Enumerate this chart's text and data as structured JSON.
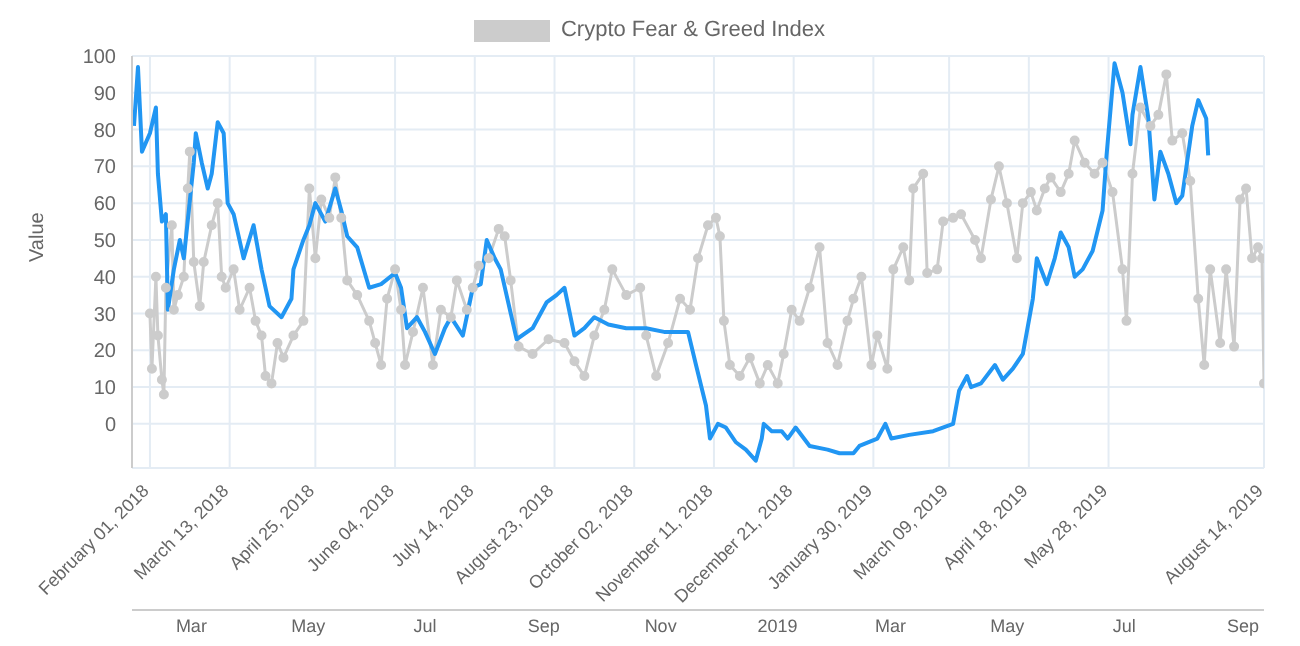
{
  "chart_data": {
    "type": "line",
    "ylabel": "Value",
    "ylim": [
      -12,
      100
    ],
    "yticks": [
      0,
      10,
      20,
      30,
      40,
      50,
      60,
      70,
      80,
      90,
      100
    ],
    "xlim": [
      "2018-01-23",
      "2019-08-14"
    ],
    "xticks": [
      {
        "value": "2018-02-01",
        "label": "February 01, 2018"
      },
      {
        "value": "2018-03-13",
        "label": "March 13, 2018"
      },
      {
        "value": "2018-04-25",
        "label": "April 25, 2018"
      },
      {
        "value": "2018-06-04",
        "label": "June 04, 2018"
      },
      {
        "value": "2018-07-14",
        "label": "July 14, 2018"
      },
      {
        "value": "2018-08-23",
        "label": "August 23, 2018"
      },
      {
        "value": "2018-10-02",
        "label": "October 02, 2018"
      },
      {
        "value": "2018-11-11",
        "label": "November 11, 2018"
      },
      {
        "value": "2018-12-21",
        "label": "December 21, 2018"
      },
      {
        "value": "2019-01-30",
        "label": "January 30, 2019"
      },
      {
        "value": "2019-03-09",
        "label": "March 09, 2019"
      },
      {
        "value": "2019-04-18",
        "label": "April 18, 2019"
      },
      {
        "value": "2019-05-28",
        "label": "May 28, 2019"
      },
      {
        "value": "2019-08-14",
        "label": "August 14, 2019"
      }
    ],
    "x2lim": [
      "2018-01-29",
      "2019-09-12"
    ],
    "x2ticks": [
      {
        "value": "2018-03-01",
        "label": "Mar"
      },
      {
        "value": "2018-05-01",
        "label": "May"
      },
      {
        "value": "2018-07-01",
        "label": "Jul"
      },
      {
        "value": "2018-09-01",
        "label": "Sep"
      },
      {
        "value": "2018-11-01",
        "label": "Nov"
      },
      {
        "value": "2019-01-01",
        "label": "2019"
      },
      {
        "value": "2019-03-01",
        "label": "Mar"
      },
      {
        "value": "2019-05-01",
        "label": "May"
      },
      {
        "value": "2019-07-01",
        "label": "Jul"
      },
      {
        "value": "2019-09-01",
        "label": "Sep"
      }
    ],
    "grid": true,
    "legend": "top",
    "series": [
      {
        "name": "Crypto Fear & Greed Index",
        "color": "#cccccc",
        "marker": "circle",
        "x": [
          "2018-02-01",
          "2018-02-02",
          "2018-02-04",
          "2018-02-05",
          "2018-02-07",
          "2018-02-08",
          "2018-02-09",
          "2018-02-12",
          "2018-02-13",
          "2018-02-15",
          "2018-02-18",
          "2018-02-20",
          "2018-02-21",
          "2018-02-23",
          "2018-02-26",
          "2018-02-28",
          "2018-03-04",
          "2018-03-07",
          "2018-03-09",
          "2018-03-11",
          "2018-03-15",
          "2018-03-18",
          "2018-03-23",
          "2018-03-26",
          "2018-03-29",
          "2018-03-31",
          "2018-04-03",
          "2018-04-06",
          "2018-04-09",
          "2018-04-14",
          "2018-04-19",
          "2018-04-22",
          "2018-04-25",
          "2018-04-28",
          "2018-05-02",
          "2018-05-05",
          "2018-05-08",
          "2018-05-11",
          "2018-05-16",
          "2018-05-22",
          "2018-05-25",
          "2018-05-28",
          "2018-05-31",
          "2018-06-04",
          "2018-06-07",
          "2018-06-09",
          "2018-06-13",
          "2018-06-18",
          "2018-06-23",
          "2018-06-27",
          "2018-07-02",
          "2018-07-05",
          "2018-07-10",
          "2018-07-13",
          "2018-07-16",
          "2018-07-21",
          "2018-07-26",
          "2018-07-29",
          "2018-08-01",
          "2018-08-05",
          "2018-08-12",
          "2018-08-20",
          "2018-08-28",
          "2018-09-02",
          "2018-09-07",
          "2018-09-12",
          "2018-09-17",
          "2018-09-21",
          "2018-09-28",
          "2018-10-05",
          "2018-10-08",
          "2018-10-13",
          "2018-10-19",
          "2018-10-25",
          "2018-10-30",
          "2018-11-03",
          "2018-11-08",
          "2018-11-12",
          "2018-11-14",
          "2018-11-16",
          "2018-11-19",
          "2018-11-24",
          "2018-11-29",
          "2018-12-04",
          "2018-12-08",
          "2018-12-13",
          "2018-12-16",
          "2018-12-20",
          "2018-12-24",
          "2018-12-29",
          "2019-01-03",
          "2019-01-07",
          "2019-01-12",
          "2019-01-17",
          "2019-01-20",
          "2019-01-24",
          "2019-01-29",
          "2019-02-01",
          "2019-02-06",
          "2019-02-09",
          "2019-02-14",
          "2019-02-17",
          "2019-02-19",
          "2019-02-24",
          "2019-02-26",
          "2019-03-03",
          "2019-03-06",
          "2019-03-11",
          "2019-03-15",
          "2019-03-22",
          "2019-03-25",
          "2019-03-30",
          "2019-04-03",
          "2019-04-07",
          "2019-04-12",
          "2019-04-15",
          "2019-04-19",
          "2019-04-22",
          "2019-04-26",
          "2019-04-29",
          "2019-05-04",
          "2019-05-08",
          "2019-05-11",
          "2019-05-16",
          "2019-05-21",
          "2019-05-25",
          "2019-05-30",
          "2019-06-04",
          "2019-06-06",
          "2019-06-09",
          "2019-06-13",
          "2019-06-18",
          "2019-06-22",
          "2019-06-26",
          "2019-06-29",
          "2019-07-04",
          "2019-07-08",
          "2019-07-12",
          "2019-07-15",
          "2019-07-18",
          "2019-07-23",
          "2019-07-26",
          "2019-07-30",
          "2019-08-02",
          "2019-08-05",
          "2019-08-08",
          "2019-08-11",
          "2019-08-13",
          "2019-08-14"
        ],
        "values": [
          30,
          15,
          40,
          24,
          12,
          8,
          37,
          54,
          31,
          35,
          40,
          64,
          74,
          44,
          32,
          44,
          54,
          60,
          40,
          37,
          42,
          31,
          37,
          28,
          24,
          13,
          11,
          22,
          18,
          24,
          28,
          64,
          45,
          61,
          56,
          67,
          56,
          39,
          35,
          28,
          22,
          16,
          34,
          42,
          31,
          16,
          25,
          37,
          16,
          31,
          29,
          39,
          31,
          37,
          43,
          45,
          53,
          51,
          39,
          21,
          19,
          23,
          22,
          17,
          13,
          24,
          31,
          42,
          35,
          37,
          24,
          13,
          22,
          34,
          31,
          45,
          54,
          56,
          51,
          28,
          16,
          13,
          18,
          11,
          16,
          11,
          19,
          31,
          28,
          37,
          48,
          22,
          16,
          28,
          34,
          40,
          16,
          24,
          15,
          42,
          48,
          39,
          64,
          68,
          41,
          42,
          55,
          56,
          57,
          50,
          45,
          61,
          70,
          60,
          45,
          60,
          63,
          58,
          64,
          67,
          63,
          68,
          77,
          71,
          68,
          71,
          63,
          42,
          28,
          68,
          86,
          81,
          84,
          95,
          77,
          79,
          66,
          34,
          16,
          42,
          22,
          42,
          21,
          61,
          64,
          45,
          48,
          45,
          11
        ]
      },
      {
        "color": "#2196f3",
        "marker": "none",
        "x": [
          "2018-01-24",
          "2018-01-26",
          "2018-01-28",
          "2018-02-01",
          "2018-02-04",
          "2018-02-05",
          "2018-02-07",
          "2018-02-09",
          "2018-02-10",
          "2018-02-13",
          "2018-02-16",
          "2018-02-18",
          "2018-02-23",
          "2018-02-24",
          "2018-02-27",
          "2018-03-02",
          "2018-03-04",
          "2018-03-07",
          "2018-03-10",
          "2018-03-12",
          "2018-03-15",
          "2018-03-20",
          "2018-03-25",
          "2018-03-29",
          "2018-04-02",
          "2018-04-08",
          "2018-04-13",
          "2018-04-14",
          "2018-04-19",
          "2018-04-22",
          "2018-04-25",
          "2018-04-30",
          "2018-05-05",
          "2018-05-08",
          "2018-05-11",
          "2018-05-16",
          "2018-05-22",
          "2018-05-28",
          "2018-06-04",
          "2018-06-07",
          "2018-06-10",
          "2018-06-15",
          "2018-06-19",
          "2018-06-24",
          "2018-06-29",
          "2018-07-02",
          "2018-07-08",
          "2018-07-13",
          "2018-07-17",
          "2018-07-20",
          "2018-07-24",
          "2018-07-27",
          "2018-08-04",
          "2018-08-12",
          "2018-08-19",
          "2018-08-24",
          "2018-08-28",
          "2018-09-02",
          "2018-09-07",
          "2018-09-12",
          "2018-09-19",
          "2018-09-28",
          "2018-10-08",
          "2018-10-17",
          "2018-10-29",
          "2018-11-02",
          "2018-11-07",
          "2018-11-09",
          "2018-11-13",
          "2018-11-17",
          "2018-11-22",
          "2018-11-27",
          "2018-12-02",
          "2018-12-05",
          "2018-12-06",
          "2018-12-10",
          "2018-12-15",
          "2018-12-18",
          "2018-12-22",
          "2018-12-29",
          "2019-01-07",
          "2019-01-13",
          "2019-01-20",
          "2019-01-23",
          "2019-02-01",
          "2019-02-05",
          "2019-02-08",
          "2019-02-17",
          "2019-03-01",
          "2019-03-11",
          "2019-03-14",
          "2019-03-18",
          "2019-03-20",
          "2019-03-25",
          "2019-04-01",
          "2019-04-05",
          "2019-04-10",
          "2019-04-15",
          "2019-04-20",
          "2019-04-22",
          "2019-04-27",
          "2019-05-01",
          "2019-05-04",
          "2019-05-08",
          "2019-05-11",
          "2019-05-15",
          "2019-05-20",
          "2019-05-25",
          "2019-05-27",
          "2019-05-31",
          "2019-06-04",
          "2019-06-08",
          "2019-06-09",
          "2019-06-13",
          "2019-06-17",
          "2019-06-20",
          "2019-06-23",
          "2019-06-27",
          "2019-07-01",
          "2019-07-04",
          "2019-07-09",
          "2019-07-12",
          "2019-07-16",
          "2019-07-17"
        ],
        "values": [
          81,
          97,
          74,
          79,
          86,
          68,
          55,
          57,
          31,
          42,
          50,
          45,
          71,
          79,
          71,
          64,
          68,
          82,
          79,
          60,
          57,
          45,
          54,
          42,
          32,
          29,
          34,
          42,
          50,
          54,
          60,
          55,
          64,
          58,
          51,
          48,
          37,
          38,
          41,
          37,
          26,
          29,
          25,
          19,
          26,
          29,
          24,
          37,
          38,
          50,
          45,
          42,
          23,
          26,
          33,
          35,
          37,
          24,
          26,
          29,
          27,
          26,
          26,
          25,
          25,
          16,
          5,
          -4,
          0,
          -1,
          -5,
          -7,
          -10,
          -4,
          0,
          -2,
          -2,
          -4,
          -1,
          -6,
          -7,
          -8,
          -8,
          -6,
          -4,
          0,
          -4,
          -3,
          -2,
          0,
          9,
          13,
          10,
          11,
          16,
          12,
          15,
          19,
          34,
          45,
          38,
          45,
          52,
          48,
          40,
          42,
          47,
          58,
          73,
          98,
          90,
          76,
          84,
          97,
          83,
          61,
          74,
          68,
          60,
          62,
          81,
          88,
          83,
          73
        ]
      }
    ]
  }
}
